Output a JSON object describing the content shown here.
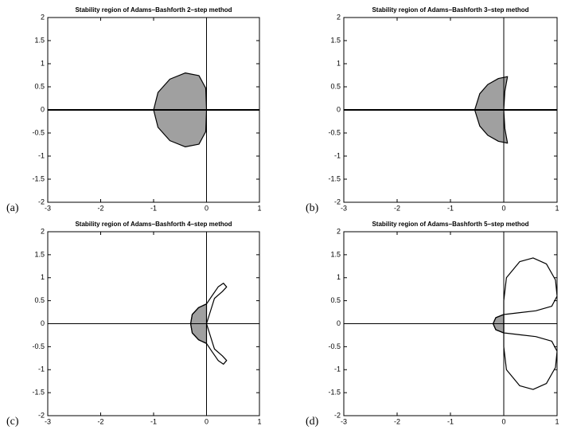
{
  "chart_data": [
    {
      "type": "line",
      "panel_label": "(a)",
      "title": "Stability region of Adams–Bashforth 2–step method",
      "xlim": [
        -3,
        1
      ],
      "ylim": [
        -2,
        2
      ],
      "xticks": [
        -3,
        -2,
        -1,
        0,
        1
      ],
      "yticks": [
        -2,
        -1.5,
        -1,
        -0.5,
        0,
        0.5,
        1,
        1.5,
        2
      ],
      "zero_line_width": 2,
      "series": [
        {
          "color": "#000000",
          "fill": "#a0a0a0",
          "x": [
            0,
            -0.015,
            -0.143,
            -0.4,
            -0.692,
            -0.917,
            -1,
            -0.917,
            -0.692,
            -0.4,
            -0.143,
            -0.015,
            0
          ],
          "y": [
            0,
            0.472,
            0.742,
            0.8,
            0.666,
            0.377,
            0,
            -0.377,
            -0.666,
            -0.8,
            -0.742,
            -0.472,
            0
          ]
        }
      ]
    },
    {
      "type": "line",
      "panel_label": "(b)",
      "title": "Stability region of Adams–Bashforth 3–step method",
      "xlim": [
        -3,
        1
      ],
      "ylim": [
        -2,
        2
      ],
      "xticks": [
        -3,
        -2,
        -1,
        0,
        1
      ],
      "yticks": [
        -2,
        -1.5,
        -1,
        -0.5,
        0,
        0.5,
        1,
        1.5,
        2
      ],
      "zero_line_width": 2,
      "series": [
        {
          "color": "#000000",
          "fill": "#a0a0a0",
          "x": [
            0,
            0.02,
            0.07,
            -0.1,
            -0.3,
            -0.45,
            -0.545,
            -0.45,
            -0.3,
            -0.1,
            0.07,
            0.02,
            0
          ],
          "y": [
            0,
            0.4,
            0.72,
            0.68,
            0.55,
            0.35,
            0,
            -0.35,
            -0.55,
            -0.68,
            -0.72,
            -0.4,
            0
          ]
        }
      ]
    },
    {
      "type": "line",
      "panel_label": "(c)",
      "title": "Stability region of Adams–Bashforth 4–step method",
      "xlim": [
        -3,
        1
      ],
      "ylim": [
        -2,
        2
      ],
      "xticks": [
        -3,
        -2,
        -1,
        0,
        1
      ],
      "yticks": [
        -2,
        -1.5,
        -1,
        -0.5,
        0,
        0.5,
        1,
        1.5,
        2
      ],
      "zero_line_width": 1,
      "series": [
        {
          "color": "#000000",
          "fill": "#a0a0a0",
          "x": [
            0,
            -0.15,
            -0.27,
            -0.3,
            -0.27,
            -0.15,
            0
          ],
          "y": [
            0.43,
            0.35,
            0.2,
            0,
            -0.2,
            -0.35,
            -0.43
          ]
        },
        {
          "color": "#000000",
          "x": [
            0,
            0.15,
            0.3,
            0.38,
            0.32,
            0.22,
            0.1,
            0,
            -0.15,
            -0.27,
            -0.3,
            -0.27,
            -0.15,
            0,
            0.1,
            0.22,
            0.32,
            0.38,
            0.3,
            0.15,
            0
          ],
          "y": [
            0,
            0.55,
            0.7,
            0.8,
            0.88,
            0.8,
            0.6,
            0.43,
            0.35,
            0.2,
            0,
            -0.2,
            -0.35,
            -0.43,
            -0.6,
            -0.8,
            -0.88,
            -0.8,
            -0.7,
            -0.55,
            0
          ]
        }
      ]
    },
    {
      "type": "line",
      "panel_label": "(d)",
      "title": "Stability region of Adams–Bashforth 5–step method",
      "xlim": [
        -3,
        1
      ],
      "ylim": [
        -2,
        2
      ],
      "xticks": [
        -3,
        -2,
        -1,
        0,
        1
      ],
      "yticks": [
        -2,
        -1.5,
        -1,
        -0.5,
        0,
        0.5,
        1,
        1.5,
        2
      ],
      "zero_line_width": 1,
      "series": [
        {
          "color": "#000000",
          "fill": "#a0a0a0",
          "x": [
            0,
            -0.15,
            -0.2,
            -0.15,
            0
          ],
          "y": [
            0.2,
            0.13,
            0,
            -0.13,
            -0.2
          ]
        },
        {
          "color": "#000000",
          "x": [
            0,
            0,
            0.05,
            0.3,
            0.55,
            0.8,
            0.97,
            1,
            0.9,
            0.6,
            0.3,
            0,
            -0.15,
            -0.2,
            -0.15,
            0,
            0.3,
            0.6,
            0.9,
            1,
            0.97,
            0.8,
            0.55,
            0.3,
            0.05,
            0,
            0
          ],
          "y": [
            0,
            0.5,
            1.0,
            1.35,
            1.43,
            1.3,
            0.95,
            0.6,
            0.38,
            0.28,
            0.24,
            0.2,
            0.13,
            0,
            -0.13,
            -0.2,
            -0.24,
            -0.28,
            -0.38,
            -0.6,
            -0.95,
            -1.3,
            -1.43,
            -1.35,
            -1.0,
            -0.5,
            0
          ]
        }
      ]
    }
  ]
}
